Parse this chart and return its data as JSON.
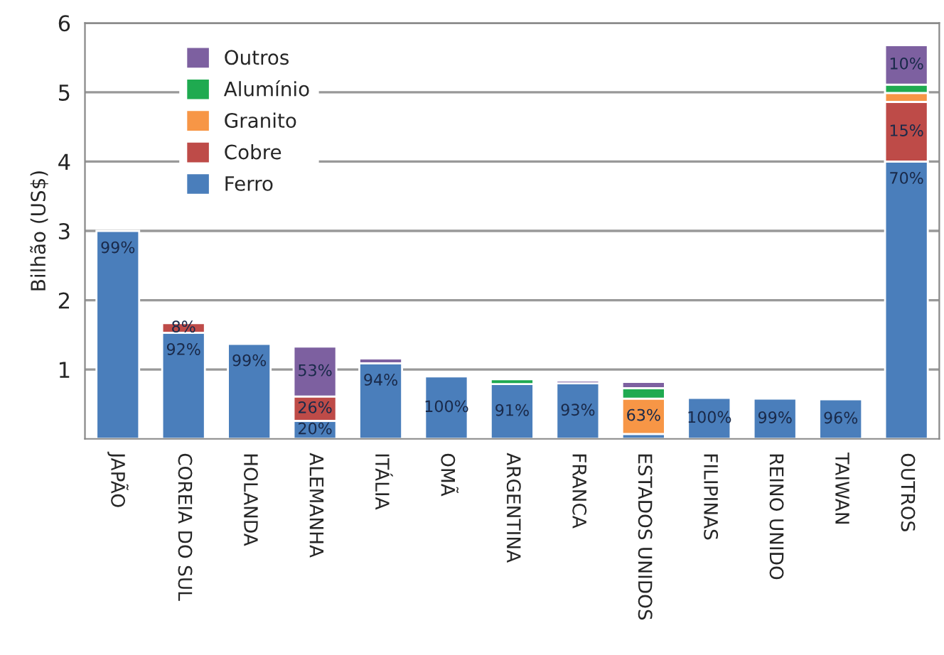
{
  "chart_data": {
    "type": "bar",
    "stacked": true,
    "ylabel": "Bilhão (US$)",
    "categories": [
      "JAPÃO",
      "COREIA DO SUL",
      "HOLANDA",
      "ALEMANHA",
      "ITÁLIA",
      "OMÃ",
      "ARGENTINA",
      "FRANCA",
      "ESTADOS UNIDOS",
      "FILIPINAS",
      "REINO UNIDO",
      "TAIWAN",
      "OUTROS"
    ],
    "series": [
      {
        "name": "Ferro",
        "color": "#4a7ebb",
        "values": [
          3.0,
          1.53,
          1.37,
          0.26,
          1.09,
          0.9,
          0.79,
          0.8,
          0.07,
          0.59,
          0.58,
          0.57,
          4.0
        ]
      },
      {
        "name": "Cobre",
        "color": "#be4b48",
        "values": [
          null,
          0.14,
          null,
          0.35,
          null,
          null,
          null,
          null,
          null,
          null,
          null,
          null,
          0.86
        ]
      },
      {
        "name": "Granito",
        "color": "#f79646",
        "values": [
          null,
          null,
          null,
          null,
          null,
          null,
          null,
          null,
          0.51,
          null,
          null,
          null,
          0.13
        ]
      },
      {
        "name": "Alumínio",
        "color": "#1faa50",
        "values": [
          null,
          null,
          null,
          null,
          null,
          null,
          0.07,
          null,
          0.15,
          null,
          null,
          null,
          0.12
        ]
      },
      {
        "name": "Outros",
        "color": "#7d60a0",
        "values": [
          null,
          null,
          null,
          0.72,
          0.07,
          null,
          null,
          0.04,
          0.09,
          null,
          null,
          null,
          0.57
        ]
      }
    ],
    "annotations": [
      {
        "text": "99%",
        "x": "JAPÃO",
        "y": 3.0
      },
      {
        "text": "8%",
        "x": "COREIA DO SUL",
        "y": 1.67
      },
      {
        "text": "92%",
        "x": "COREIA DO SUL",
        "y": 1.53
      },
      {
        "text": "99%",
        "x": "HOLANDA",
        "y": 1.37
      },
      {
        "text": "53%",
        "x": "ALEMANHA",
        "y": 1.33
      },
      {
        "text": "26%",
        "x": "ALEMANHA",
        "y": 0.61
      },
      {
        "text": "20%",
        "x": "ALEMANHA",
        "y": 0.26
      },
      {
        "text": "94%",
        "x": "ITÁLIA",
        "y": 1.09
      },
      {
        "text": "100%",
        "x": "OMÃ",
        "y": 0.9
      },
      {
        "text": "91%",
        "x": "ARGENTINA",
        "y": 0.79
      },
      {
        "text": "93%",
        "x": "FRANCA",
        "y": 0.8
      },
      {
        "text": "63%",
        "x": "ESTADOS UNIDOS",
        "y": 0.58
      },
      {
        "text": "100%",
        "x": "FILIPINAS",
        "y": 0.59
      },
      {
        "text": "99%",
        "x": "REINO UNIDO",
        "y": 0.58
      },
      {
        "text": "96%",
        "x": "TAIWAN",
        "y": 0.57
      },
      {
        "text": "10%",
        "x": "OUTROS",
        "y": 5.68
      },
      {
        "text": "15%",
        "x": "OUTROS",
        "y": 4.86
      },
      {
        "text": "70%",
        "x": "OUTROS",
        "y": 4.0
      }
    ],
    "ylim": [
      0,
      6
    ],
    "yticks": [
      1,
      2,
      3,
      4,
      5,
      6
    ],
    "grid": "y",
    "legend": "top left"
  }
}
